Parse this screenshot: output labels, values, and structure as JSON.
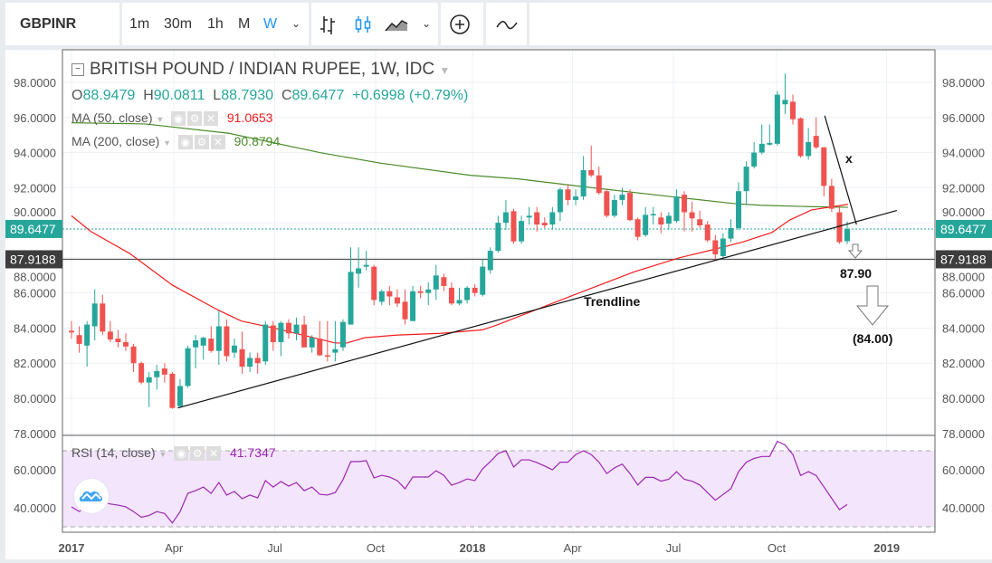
{
  "toolbar": {
    "symbol": "GBPINR",
    "intervals": [
      "1m",
      "30m",
      "1h",
      "M",
      "W"
    ],
    "active_interval": "W",
    "accent": "#2196f3"
  },
  "legend": {
    "title": "BRITISH POUND / INDIAN RUPEE, 1W, IDC",
    "o_label": "O",
    "o": "88.9479",
    "h_label": "H",
    "h": "90.0811",
    "l_label": "L",
    "l": "88.7930",
    "c_label": "C",
    "c": "89.6477",
    "change": "+0.6998 (+0.79%)",
    "ma50_label": "MA (50, close)",
    "ma50_value": "91.0653",
    "ma200_label": "MA (200, close)",
    "ma200_value": "90.8794",
    "rsi_label": "RSI (14, close)",
    "rsi_value": "41.7347"
  },
  "colors": {
    "up": "#26a69a",
    "down": "#ef5350",
    "ma50": "#f21c1c",
    "ma200": "#4a8b2a",
    "rsi": "#9c27b0",
    "rsi_band": "#f3e5fc"
  },
  "annotations": {
    "x_mark": "x",
    "level": "87.90",
    "target": "(84.00)",
    "trendline": "Trendline"
  },
  "price_labels": {
    "last": "89.6477",
    "line": "87.9188"
  },
  "chart_data": {
    "type": "candlestick",
    "title": "BRITISH POUND / INDIAN RUPEE, 1W, IDC",
    "ylim": [
      77,
      99
    ],
    "yticks": [
      "98.0000",
      "96.0000",
      "94.0000",
      "92.0000",
      "90.0000",
      "88.0000",
      "86.0000",
      "84.0000",
      "82.0000",
      "80.0000",
      "78.0000"
    ],
    "ytick_values": [
      98,
      96,
      94,
      92,
      90,
      88,
      86,
      84,
      82,
      80,
      78
    ],
    "xticks": [
      {
        "label": "2017",
        "week": 0,
        "bold": true
      },
      {
        "label": "Apr",
        "week": 13.2
      },
      {
        "label": "Jul",
        "week": 26.2
      },
      {
        "label": "Oct",
        "week": 39.2
      },
      {
        "label": "2018",
        "week": 51.7,
        "bold": true
      },
      {
        "label": "Apr",
        "week": 64.6
      },
      {
        "label": "Jul",
        "week": 77.6
      },
      {
        "label": "Oct",
        "week": 90.9
      },
      {
        "label": "2019",
        "week": 105.1,
        "bold": true
      }
    ],
    "candles_ohlc": [
      [
        83.85,
        84.4,
        83.4,
        83.75
      ],
      [
        83.6,
        84.1,
        82.6,
        83.1
      ],
      [
        83.0,
        84.4,
        81.8,
        84.2
      ],
      [
        84.1,
        86.2,
        83.3,
        85.4
      ],
      [
        85.4,
        85.9,
        83.6,
        83.8
      ],
      [
        83.8,
        84.4,
        83.2,
        83.35
      ],
      [
        83.4,
        83.9,
        82.9,
        83.2
      ],
      [
        83.2,
        83.7,
        82.7,
        82.95
      ],
      [
        82.95,
        83.1,
        81.5,
        82.0
      ],
      [
        82.0,
        82.1,
        80.8,
        80.9
      ],
      [
        80.9,
        81.5,
        79.5,
        81.2
      ],
      [
        81.2,
        81.9,
        80.5,
        81.55
      ],
      [
        81.7,
        82.0,
        80.9,
        81.35
      ],
      [
        81.4,
        81.5,
        79.4,
        79.45
      ],
      [
        79.55,
        81.1,
        79.45,
        80.7
      ],
      [
        80.7,
        83.0,
        80.6,
        82.85
      ],
      [
        82.9,
        83.6,
        81.7,
        83.3
      ],
      [
        83.0,
        83.5,
        82.2,
        83.45
      ],
      [
        83.4,
        84.1,
        82.6,
        82.7
      ],
      [
        82.7,
        85.0,
        81.9,
        84.1
      ],
      [
        84.1,
        84.5,
        82.1,
        82.4
      ],
      [
        82.6,
        83.4,
        82.3,
        83.0
      ],
      [
        82.8,
        83.8,
        81.4,
        81.8
      ],
      [
        81.8,
        82.6,
        81.5,
        82.3
      ],
      [
        82.3,
        82.6,
        81.4,
        82.0
      ],
      [
        82.1,
        84.4,
        81.9,
        84.2
      ],
      [
        84.15,
        84.4,
        82.7,
        83.2
      ],
      [
        83.2,
        84.4,
        82.4,
        84.3
      ],
      [
        84.3,
        84.5,
        83.4,
        83.7
      ],
      [
        83.7,
        84.6,
        83.3,
        84.2
      ],
      [
        84.2,
        84.7,
        82.9,
        82.9
      ],
      [
        82.9,
        83.6,
        82.6,
        83.45
      ],
      [
        83.4,
        84.4,
        82.4,
        82.45
      ],
      [
        82.45,
        84.4,
        82.1,
        82.4
      ],
      [
        82.6,
        84.4,
        82.1,
        82.8
      ],
      [
        82.9,
        84.5,
        82.7,
        84.35
      ],
      [
        84.2,
        88.6,
        84.2,
        87.2
      ],
      [
        87.1,
        88.6,
        86.3,
        87.4
      ],
      [
        87.5,
        88.4,
        87.3,
        87.6
      ],
      [
        87.5,
        87.6,
        85.3,
        85.6
      ],
      [
        85.5,
        86.2,
        85.3,
        86.1
      ],
      [
        86.1,
        86.4,
        85.3,
        85.8
      ],
      [
        85.75,
        86.2,
        85.2,
        85.4
      ],
      [
        85.5,
        86.2,
        84.2,
        84.5
      ],
      [
        84.4,
        86.4,
        84.4,
        86.1
      ],
      [
        86.1,
        86.4,
        85.7,
        86.0
      ],
      [
        86.0,
        86.6,
        85.3,
        86.2
      ],
      [
        86.2,
        87.6,
        85.6,
        87.0
      ],
      [
        86.9,
        87.1,
        86.1,
        86.4
      ],
      [
        86.3,
        86.6,
        85.3,
        85.4
      ],
      [
        85.4,
        86.3,
        85.3,
        85.6
      ],
      [
        85.6,
        86.4,
        85.4,
        86.3
      ],
      [
        86.3,
        86.5,
        85.8,
        86.0
      ],
      [
        85.9,
        87.9,
        85.8,
        87.5
      ],
      [
        87.3,
        88.6,
        87.1,
        88.4
      ],
      [
        88.4,
        90.4,
        88.3,
        90.0
      ],
      [
        90.0,
        91.3,
        89.6,
        90.6
      ],
      [
        90.66,
        90.8,
        88.8,
        88.94
      ],
      [
        88.94,
        90.4,
        88.8,
        90.1
      ],
      [
        90.3,
        90.9,
        89.9,
        90.4
      ],
      [
        90.6,
        90.9,
        89.5,
        89.9
      ],
      [
        90.0,
        90.3,
        89.7,
        89.85
      ],
      [
        89.9,
        90.9,
        89.6,
        90.6
      ],
      [
        90.6,
        92.0,
        90.1,
        91.9
      ],
      [
        91.9,
        92.2,
        91.0,
        91.3
      ],
      [
        91.3,
        91.9,
        91.0,
        91.5
      ],
      [
        91.5,
        93.8,
        91.3,
        93.0
      ],
      [
        93.0,
        94.4,
        92.6,
        92.7
      ],
      [
        92.7,
        93.2,
        91.6,
        91.7
      ],
      [
        91.8,
        91.9,
        90.3,
        90.4
      ],
      [
        90.4,
        91.6,
        90.3,
        91.3
      ],
      [
        91.3,
        92.0,
        91.0,
        91.6
      ],
      [
        91.7,
        91.9,
        90.1,
        90.15
      ],
      [
        90.2,
        90.3,
        89.0,
        89.2
      ],
      [
        89.3,
        90.9,
        89.2,
        90.45
      ],
      [
        90.5,
        90.9,
        89.9,
        90.5
      ],
      [
        90.3,
        90.6,
        89.4,
        89.9
      ],
      [
        89.95,
        90.6,
        89.6,
        90.4
      ],
      [
        90.1,
        91.9,
        90.0,
        91.5
      ],
      [
        91.6,
        91.8,
        89.5,
        90.6
      ],
      [
        90.6,
        91.2,
        89.5,
        90.25
      ],
      [
        90.2,
        90.7,
        89.7,
        89.85
      ],
      [
        89.9,
        90.1,
        88.9,
        89.0
      ],
      [
        89.0,
        89.3,
        87.9,
        88.2
      ],
      [
        88.1,
        89.4,
        87.9,
        89.1
      ],
      [
        89.1,
        90.2,
        88.9,
        89.7
      ],
      [
        89.7,
        92.3,
        89.6,
        91.8
      ],
      [
        91.8,
        93.5,
        91.0,
        93.2
      ],
      [
        93.2,
        94.6,
        93.1,
        94.0
      ],
      [
        94.0,
        95.6,
        93.9,
        94.5
      ],
      [
        94.45,
        95.6,
        94.4,
        94.55
      ],
      [
        94.5,
        97.5,
        94.4,
        97.3
      ],
      [
        96.75,
        98.5,
        96.2,
        97.0
      ],
      [
        96.9,
        97.3,
        95.6,
        95.9
      ],
      [
        95.95,
        96.0,
        93.7,
        93.8
      ],
      [
        93.8,
        95.4,
        93.6,
        94.6
      ],
      [
        94.95,
        96.0,
        94.2,
        94.3
      ],
      [
        94.3,
        94.3,
        91.5,
        92.1
      ],
      [
        92.1,
        92.5,
        90.6,
        90.8
      ],
      [
        90.6,
        91.0,
        88.8,
        88.9
      ],
      [
        88.95,
        90.08,
        88.79,
        89.65
      ]
    ],
    "ma50": [
      [
        0,
        90.4
      ],
      [
        2.5,
        89.5
      ],
      [
        7.5,
        88.25
      ],
      [
        13,
        86.45
      ],
      [
        18.8,
        85.05
      ],
      [
        21.9,
        84.4
      ],
      [
        26.1,
        84.0
      ],
      [
        34,
        83.15
      ],
      [
        35.5,
        83.15
      ],
      [
        37.8,
        83.45
      ],
      [
        41.8,
        83.6
      ],
      [
        47.6,
        83.7
      ],
      [
        53,
        83.9
      ],
      [
        55,
        84.2
      ],
      [
        63.1,
        85.6
      ],
      [
        66.6,
        86.2
      ],
      [
        72.5,
        87.2
      ],
      [
        78.3,
        88.0
      ],
      [
        82.1,
        88.4
      ],
      [
        86.5,
        88.9
      ],
      [
        90.3,
        89.45
      ],
      [
        92.6,
        90.16
      ],
      [
        95.4,
        90.73
      ],
      [
        100.1,
        91.05
      ]
    ],
    "ma200": [
      [
        0,
        95.7
      ],
      [
        9.5,
        95.63
      ],
      [
        20.3,
        95.1
      ],
      [
        32,
        94.0
      ],
      [
        39.8,
        93.4
      ],
      [
        51.5,
        92.7
      ],
      [
        57.6,
        92.5
      ],
      [
        65.1,
        92.1
      ],
      [
        77.1,
        91.5
      ],
      [
        85.3,
        91.1
      ],
      [
        88.8,
        91.0
      ],
      [
        94.3,
        90.93
      ],
      [
        100.1,
        90.88
      ]
    ],
    "trendline": [
      [
        13.7,
        79.45
      ],
      [
        106.4,
        90.7
      ]
    ],
    "downtrend_line": [
      [
        97.1,
        96.1
      ],
      [
        101.2,
        89.9
      ]
    ],
    "hlines": {
      "last_close": 89.6477,
      "support": 87.9188
    },
    "rsi": {
      "ylim": [
        27,
        77
      ],
      "bands": [
        30,
        70
      ],
      "yticks": [
        "60.0000",
        "40.0000"
      ],
      "ytick_values": [
        60,
        40
      ],
      "values": [
        40.5,
        38,
        41,
        42.5,
        42.9,
        42,
        41.4,
        40.5,
        38,
        35,
        36,
        38,
        37,
        32,
        38,
        47.6,
        49,
        50.9,
        47.6,
        53.3,
        46.7,
        48.6,
        44.8,
        46.7,
        45.2,
        54.3,
        50.9,
        53.8,
        51.4,
        53.3,
        49,
        50.9,
        47.1,
        46.7,
        48,
        54.8,
        64.3,
        64.3,
        64.8,
        55.7,
        57.1,
        56.2,
        54.3,
        50,
        56.2,
        56.2,
        56.2,
        59.5,
        57.1,
        51.9,
        53.3,
        55.2,
        54.3,
        60.5,
        64.3,
        68.6,
        70,
        61.4,
        65.2,
        65.2,
        63.8,
        62,
        60,
        64,
        64,
        68,
        70,
        68,
        64,
        58,
        61,
        63,
        58,
        52,
        56,
        56,
        54,
        55,
        59,
        55,
        54,
        52,
        48,
        44,
        47,
        50,
        59,
        64,
        66,
        67,
        67,
        75,
        73,
        68,
        57,
        59,
        57,
        51,
        45,
        39,
        41.7
      ]
    }
  }
}
